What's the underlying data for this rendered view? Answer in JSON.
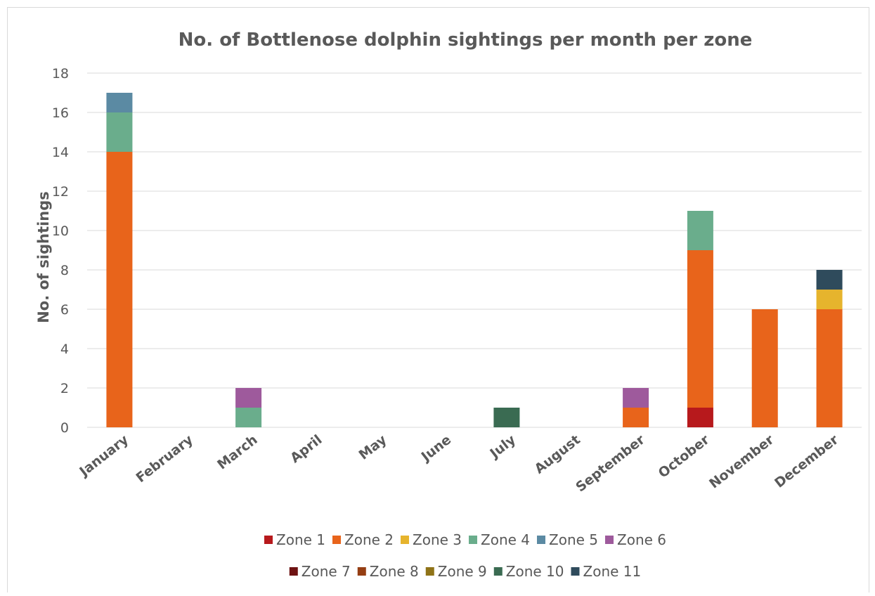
{
  "chart_data": {
    "type": "bar",
    "stacked": true,
    "title": "No. of Bottlenose dolphin sightings per month per zone",
    "xlabel": "",
    "ylabel": "No. of sightings",
    "ylim": [
      0,
      18
    ],
    "yticks": [
      0,
      2,
      4,
      6,
      8,
      10,
      12,
      14,
      16,
      18
    ],
    "grid": true,
    "legend_position": "bottom",
    "categories": [
      "January",
      "February",
      "March",
      "April",
      "May",
      "June",
      "July",
      "August",
      "September",
      "October",
      "November",
      "December"
    ],
    "series": [
      {
        "name": "Zone 1",
        "color": "#b7191c",
        "values": [
          0,
          0,
          0,
          0,
          0,
          0,
          0,
          0,
          0,
          1,
          0,
          0
        ]
      },
      {
        "name": "Zone 2",
        "color": "#e8641b",
        "values": [
          14,
          0,
          0,
          0,
          0,
          0,
          0,
          0,
          1,
          8,
          6,
          6
        ]
      },
      {
        "name": "Zone 3",
        "color": "#e6b42d",
        "values": [
          0,
          0,
          0,
          0,
          0,
          0,
          0,
          0,
          0,
          0,
          0,
          1
        ]
      },
      {
        "name": "Zone 4",
        "color": "#6aad8c",
        "values": [
          2,
          0,
          1,
          0,
          0,
          0,
          0,
          0,
          0,
          2,
          0,
          0
        ]
      },
      {
        "name": "Zone 5",
        "color": "#5b8aa3",
        "values": [
          1,
          0,
          0,
          0,
          0,
          0,
          0,
          0,
          0,
          0,
          0,
          0
        ]
      },
      {
        "name": "Zone 6",
        "color": "#9e5a9c",
        "values": [
          0,
          0,
          1,
          0,
          0,
          0,
          0,
          0,
          1,
          0,
          0,
          0
        ]
      },
      {
        "name": "Zone 7",
        "color": "#6e1212",
        "values": [
          0,
          0,
          0,
          0,
          0,
          0,
          0,
          0,
          0,
          0,
          0,
          0
        ]
      },
      {
        "name": "Zone 8",
        "color": "#953e13",
        "values": [
          0,
          0,
          0,
          0,
          0,
          0,
          0,
          0,
          0,
          0,
          0,
          0
        ]
      },
      {
        "name": "Zone 9",
        "color": "#8f7318",
        "values": [
          0,
          0,
          0,
          0,
          0,
          0,
          0,
          0,
          0,
          0,
          0,
          0
        ]
      },
      {
        "name": "Zone 10",
        "color": "#3a6b52",
        "values": [
          0,
          0,
          0,
          0,
          0,
          0,
          1,
          0,
          0,
          0,
          0,
          0
        ]
      },
      {
        "name": "Zone 11",
        "color": "#2f4b5c",
        "values": [
          0,
          0,
          0,
          0,
          0,
          0,
          0,
          0,
          0,
          0,
          0,
          1
        ]
      }
    ]
  }
}
